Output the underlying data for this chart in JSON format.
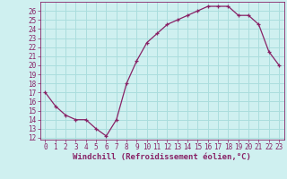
{
  "x": [
    0,
    1,
    2,
    3,
    4,
    5,
    6,
    7,
    8,
    9,
    10,
    11,
    12,
    13,
    14,
    15,
    16,
    17,
    18,
    19,
    20,
    21,
    22,
    23
  ],
  "y": [
    17,
    15.5,
    14.5,
    14,
    14,
    13,
    12.2,
    14,
    18,
    20.5,
    22.5,
    23.5,
    24.5,
    25,
    25.5,
    26,
    26.5,
    26.5,
    26.5,
    25.5,
    25.5,
    24.5,
    21.5,
    20
  ],
  "xlim": [
    -0.5,
    23.5
  ],
  "ylim": [
    11.8,
    27.0
  ],
  "yticks": [
    12,
    13,
    14,
    15,
    16,
    17,
    18,
    19,
    20,
    21,
    22,
    23,
    24,
    25,
    26
  ],
  "xticks": [
    0,
    1,
    2,
    3,
    4,
    5,
    6,
    7,
    8,
    9,
    10,
    11,
    12,
    13,
    14,
    15,
    16,
    17,
    18,
    19,
    20,
    21,
    22,
    23
  ],
  "xlabel": "Windchill (Refroidissement éolien,°C)",
  "line_color": "#882266",
  "marker": "+",
  "bg_color": "#cff0f0",
  "grid_color": "#aadddd",
  "tick_fontsize": 5.5,
  "label_fontsize": 6.5
}
